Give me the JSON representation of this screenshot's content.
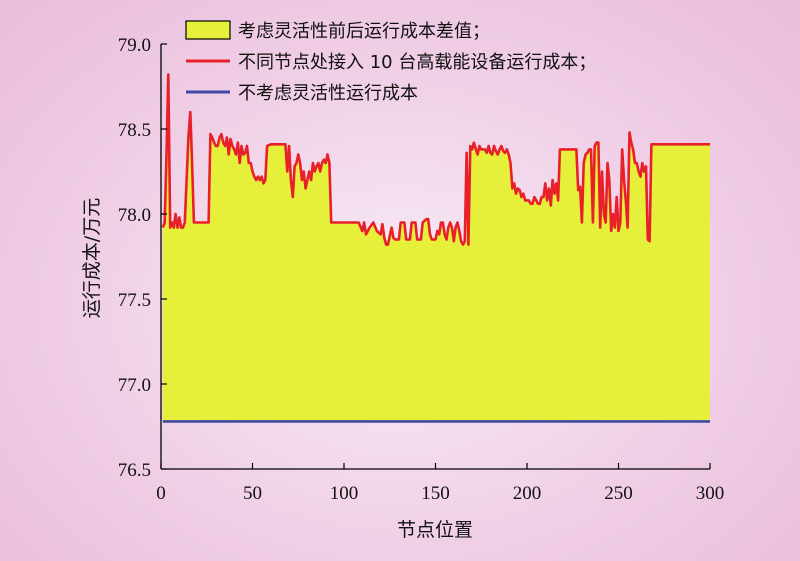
{
  "chart_data": {
    "type": "line",
    "title": "",
    "xlabel": "节点位置",
    "ylabel": "运行成本/万元",
    "xlim": [
      0,
      300
    ],
    "ylim": [
      76.5,
      79.0
    ],
    "xticks": [
      "0",
      "50",
      "100",
      "150",
      "200",
      "250",
      "300"
    ],
    "yticks": [
      "76.5",
      "77.0",
      "77.5",
      "78.0",
      "78.5",
      "79.0"
    ],
    "grid": false,
    "legend_position": "top",
    "legend": [
      {
        "label": "考虑灵活性前后运行成本差值；",
        "kind": "fill",
        "color": "#e6f03a"
      },
      {
        "label": "不同节点处接入 10 台高载能设备运行成本；",
        "kind": "line",
        "color": "#e8202a"
      },
      {
        "label": "不考虑灵活性运行成本",
        "kind": "line",
        "color": "#3f4aa5"
      }
    ],
    "series": [
      {
        "name": "不同节点处接入 10 台高载能设备运行成本；",
        "color": "#e8202a",
        "points": [
          [
            1,
            77.92
          ],
          [
            2,
            77.95
          ],
          [
            3,
            78.35
          ],
          [
            4,
            78.82
          ],
          [
            5,
            77.92
          ],
          [
            6,
            77.95
          ],
          [
            7,
            77.92
          ],
          [
            8,
            78.0
          ],
          [
            9,
            77.92
          ],
          [
            10,
            77.98
          ],
          [
            11,
            77.92
          ],
          [
            12,
            77.92
          ],
          [
            13,
            77.95
          ],
          [
            14,
            78.2
          ],
          [
            15,
            78.45
          ],
          [
            16,
            78.6
          ],
          [
            17,
            78.3
          ],
          [
            18,
            77.95
          ],
          [
            19,
            77.95
          ],
          [
            22,
            77.95
          ],
          [
            25,
            77.95
          ],
          [
            26,
            77.95
          ],
          [
            27,
            78.47
          ],
          [
            28,
            78.45
          ],
          [
            29,
            78.42
          ],
          [
            30,
            78.4
          ],
          [
            31,
            78.4
          ],
          [
            32,
            78.45
          ],
          [
            33,
            78.47
          ],
          [
            34,
            78.42
          ],
          [
            35,
            78.4
          ],
          [
            36,
            78.45
          ],
          [
            37,
            78.35
          ],
          [
            38,
            78.44
          ],
          [
            39,
            78.4
          ],
          [
            40,
            78.38
          ],
          [
            41,
            78.35
          ],
          [
            42,
            78.42
          ],
          [
            43,
            78.3
          ],
          [
            44,
            78.4
          ],
          [
            45,
            78.35
          ],
          [
            46,
            78.36
          ],
          [
            47,
            78.4
          ],
          [
            48,
            78.3
          ],
          [
            49,
            78.3
          ],
          [
            50,
            78.25
          ],
          [
            51,
            78.22
          ],
          [
            52,
            78.2
          ],
          [
            53,
            78.22
          ],
          [
            54,
            78.2
          ],
          [
            55,
            78.22
          ],
          [
            56,
            78.18
          ],
          [
            57,
            78.2
          ],
          [
            58,
            78.4
          ],
          [
            60,
            78.41
          ],
          [
            65,
            78.41
          ],
          [
            68,
            78.41
          ],
          [
            69,
            78.25
          ],
          [
            70,
            78.4
          ],
          [
            71,
            78.2
          ],
          [
            72,
            78.1
          ],
          [
            73,
            78.28
          ],
          [
            74,
            78.3
          ],
          [
            75,
            78.35
          ],
          [
            76,
            78.3
          ],
          [
            77,
            78.2
          ],
          [
            78,
            78.25
          ],
          [
            79,
            78.15
          ],
          [
            80,
            78.2
          ],
          [
            81,
            78.25
          ],
          [
            82,
            78.2
          ],
          [
            83,
            78.3
          ],
          [
            84,
            78.25
          ],
          [
            85,
            78.28
          ],
          [
            86,
            78.3
          ],
          [
            87,
            78.25
          ],
          [
            88,
            78.3
          ],
          [
            89,
            78.32
          ],
          [
            90,
            78.3
          ],
          [
            91,
            78.35
          ],
          [
            92,
            78.3
          ],
          [
            93,
            77.95
          ],
          [
            95,
            77.95
          ],
          [
            100,
            77.95
          ],
          [
            105,
            77.95
          ],
          [
            108,
            77.95
          ],
          [
            110,
            77.9
          ],
          [
            111,
            77.95
          ],
          [
            112,
            77.88
          ],
          [
            114,
            77.92
          ],
          [
            116,
            77.95
          ],
          [
            118,
            77.9
          ],
          [
            120,
            77.88
          ],
          [
            121,
            77.94
          ],
          [
            122,
            77.86
          ],
          [
            123,
            77.82
          ],
          [
            124,
            77.82
          ],
          [
            126,
            77.92
          ],
          [
            127,
            77.86
          ],
          [
            128,
            77.85
          ],
          [
            130,
            77.85
          ],
          [
            131,
            77.95
          ],
          [
            133,
            77.95
          ],
          [
            134,
            77.85
          ],
          [
            136,
            77.85
          ],
          [
            137,
            77.95
          ],
          [
            139,
            77.95
          ],
          [
            140,
            77.85
          ],
          [
            142,
            77.85
          ],
          [
            143,
            77.95
          ],
          [
            145,
            77.97
          ],
          [
            146,
            77.97
          ],
          [
            147,
            77.88
          ],
          [
            148,
            77.85
          ],
          [
            150,
            77.85
          ],
          [
            151,
            77.9
          ],
          [
            152,
            77.88
          ],
          [
            153,
            77.95
          ],
          [
            154,
            77.95
          ],
          [
            155,
            77.88
          ],
          [
            156,
            77.85
          ],
          [
            157,
            77.92
          ],
          [
            158,
            77.95
          ],
          [
            159,
            77.92
          ],
          [
            160,
            77.84
          ],
          [
            161,
            77.92
          ],
          [
            162,
            77.95
          ],
          [
            163,
            77.9
          ],
          [
            164,
            77.84
          ],
          [
            165,
            77.82
          ],
          [
            166,
            77.84
          ],
          [
            167,
            78.36
          ],
          [
            168,
            77.82
          ],
          [
            169,
            78.4
          ],
          [
            170,
            78.38
          ],
          [
            171,
            78.42
          ],
          [
            172,
            78.38
          ],
          [
            173,
            78.35
          ],
          [
            174,
            78.4
          ],
          [
            175,
            78.38
          ],
          [
            176,
            78.38
          ],
          [
            177,
            78.38
          ],
          [
            178,
            78.36
          ],
          [
            179,
            78.4
          ],
          [
            180,
            78.36
          ],
          [
            181,
            78.35
          ],
          [
            182,
            78.4
          ],
          [
            183,
            78.37
          ],
          [
            184,
            78.35
          ],
          [
            185,
            78.38
          ],
          [
            186,
            78.4
          ],
          [
            187,
            78.37
          ],
          [
            188,
            78.36
          ],
          [
            189,
            78.38
          ],
          [
            190,
            78.35
          ],
          [
            191,
            78.3
          ],
          [
            192,
            78.15
          ],
          [
            193,
            78.18
          ],
          [
            194,
            78.12
          ],
          [
            195,
            78.15
          ],
          [
            196,
            78.14
          ],
          [
            197,
            78.1
          ],
          [
            198,
            78.12
          ],
          [
            199,
            78.08
          ],
          [
            200,
            78.08
          ],
          [
            201,
            78.08
          ],
          [
            202,
            78.06
          ],
          [
            203,
            78.06
          ],
          [
            204,
            78.1
          ],
          [
            205,
            78.08
          ],
          [
            206,
            78.06
          ],
          [
            207,
            78.06
          ],
          [
            208,
            78.1
          ],
          [
            209,
            78.1
          ],
          [
            210,
            78.18
          ],
          [
            211,
            78.08
          ],
          [
            212,
            78.15
          ],
          [
            213,
            78.05
          ],
          [
            214,
            78.2
          ],
          [
            215,
            78.12
          ],
          [
            216,
            78.18
          ],
          [
            217,
            78.08
          ],
          [
            218,
            78.38
          ],
          [
            220,
            78.38
          ],
          [
            225,
            78.38
          ],
          [
            227,
            78.38
          ],
          [
            228,
            78.14
          ],
          [
            229,
            78.16
          ],
          [
            230,
            77.95
          ],
          [
            231,
            78.3
          ],
          [
            232,
            78.35
          ],
          [
            233,
            78.36
          ],
          [
            234,
            78.38
          ],
          [
            235,
            78.38
          ],
          [
            236,
            77.95
          ],
          [
            237,
            78.4
          ],
          [
            238,
            78.42
          ],
          [
            239,
            78.42
          ],
          [
            240,
            77.92
          ],
          [
            241,
            78.25
          ],
          [
            242,
            78.0
          ],
          [
            243,
            77.95
          ],
          [
            244,
            78.3
          ],
          [
            245,
            78.2
          ],
          [
            246,
            77.9
          ],
          [
            247,
            78.0
          ],
          [
            248,
            77.92
          ],
          [
            249,
            78.1
          ],
          [
            250,
            77.9
          ],
          [
            251,
            77.95
          ],
          [
            252,
            78.38
          ],
          [
            253,
            78.2
          ],
          [
            254,
            78.08
          ],
          [
            255,
            77.92
          ],
          [
            256,
            78.48
          ],
          [
            257,
            78.42
          ],
          [
            258,
            78.38
          ],
          [
            259,
            78.3
          ],
          [
            260,
            78.3
          ],
          [
            261,
            78.25
          ],
          [
            262,
            78.22
          ],
          [
            263,
            78.3
          ],
          [
            264,
            78.25
          ],
          [
            265,
            78.28
          ],
          [
            266,
            77.85
          ],
          [
            267,
            77.84
          ],
          [
            268,
            78.41
          ],
          [
            270,
            78.41
          ],
          [
            280,
            78.41
          ],
          [
            290,
            78.41
          ],
          [
            300,
            78.41
          ]
        ]
      },
      {
        "name": "不考虑灵活性运行成本",
        "color": "#3f4aa5",
        "points": [
          [
            1,
            76.78
          ],
          [
            300,
            76.78
          ]
        ]
      }
    ],
    "fill_between": {
      "name": "考虑灵活性前后运行成本差值；",
      "color": "#e6f03a",
      "upper_series": 0,
      "lower_value": 76.78
    }
  }
}
